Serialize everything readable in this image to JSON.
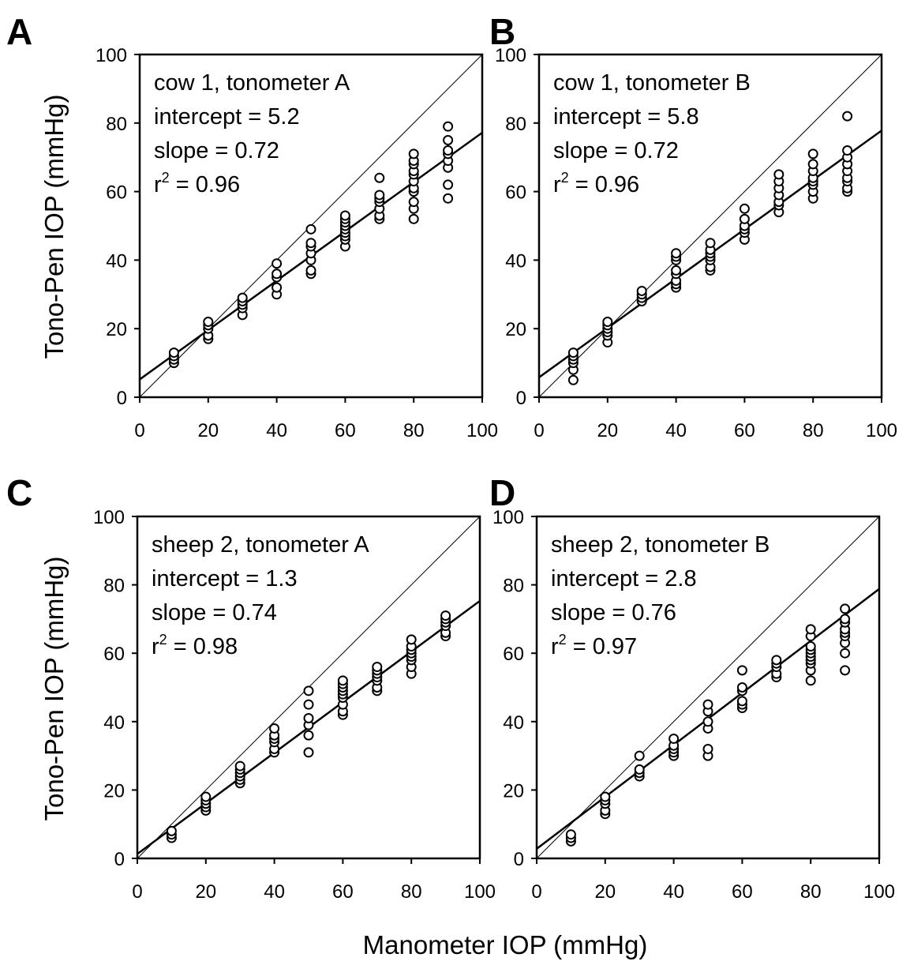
{
  "figure": {
    "ylabel": "Tono-Pen IOP (mmHg)",
    "xlabel": "Manometer IOP (mmHg)"
  },
  "chart_data": [
    {
      "panel": "A",
      "type": "scatter",
      "annotation": {
        "title": "cow 1, tonometer A",
        "intercept": "intercept = 5.2",
        "slope": "slope = 0.72",
        "r2_prefix": "r",
        "r2_sup": "2",
        "r2_value": " = 0.96"
      },
      "fit": {
        "intercept": 5.2,
        "slope": 0.72
      },
      "identity_line": true,
      "xlim": [
        0,
        100
      ],
      "ylim": [
        0,
        100
      ],
      "xticks": [
        0,
        20,
        40,
        60,
        80,
        100
      ],
      "yticks": [
        0,
        20,
        40,
        60,
        80,
        100
      ],
      "points": [
        [
          10,
          10
        ],
        [
          10,
          11
        ],
        [
          10,
          12
        ],
        [
          10,
          13
        ],
        [
          20,
          17
        ],
        [
          20,
          18
        ],
        [
          20,
          20
        ],
        [
          20,
          21
        ],
        [
          20,
          22
        ],
        [
          30,
          24
        ],
        [
          30,
          26
        ],
        [
          30,
          27
        ],
        [
          30,
          28
        ],
        [
          30,
          29
        ],
        [
          40,
          30
        ],
        [
          40,
          32
        ],
        [
          40,
          35
        ],
        [
          40,
          36
        ],
        [
          40,
          39
        ],
        [
          50,
          36
        ],
        [
          50,
          37
        ],
        [
          50,
          40
        ],
        [
          50,
          42
        ],
        [
          50,
          44
        ],
        [
          50,
          45
        ],
        [
          50,
          49
        ],
        [
          60,
          44
        ],
        [
          60,
          46
        ],
        [
          60,
          47
        ],
        [
          60,
          48
        ],
        [
          60,
          49
        ],
        [
          60,
          50
        ],
        [
          60,
          51
        ],
        [
          60,
          52
        ],
        [
          60,
          53
        ],
        [
          70,
          52
        ],
        [
          70,
          53
        ],
        [
          70,
          55
        ],
        [
          70,
          57
        ],
        [
          70,
          58
        ],
        [
          70,
          59
        ],
        [
          70,
          64
        ],
        [
          80,
          52
        ],
        [
          80,
          55
        ],
        [
          80,
          57
        ],
        [
          80,
          60
        ],
        [
          80,
          61
        ],
        [
          80,
          63
        ],
        [
          80,
          65
        ],
        [
          80,
          66
        ],
        [
          80,
          68
        ],
        [
          80,
          69
        ],
        [
          80,
          71
        ],
        [
          90,
          58
        ],
        [
          90,
          62
        ],
        [
          90,
          67
        ],
        [
          90,
          69
        ],
        [
          90,
          71
        ],
        [
          90,
          72
        ],
        [
          90,
          75
        ],
        [
          90,
          79
        ]
      ]
    },
    {
      "panel": "B",
      "type": "scatter",
      "annotation": {
        "title": "cow 1, tonometer B",
        "intercept": "intercept = 5.8",
        "slope": "slope = 0.72",
        "r2_prefix": "r",
        "r2_sup": "2",
        "r2_value": " = 0.96"
      },
      "fit": {
        "intercept": 5.8,
        "slope": 0.72
      },
      "identity_line": true,
      "xlim": [
        0,
        100
      ],
      "ylim": [
        0,
        100
      ],
      "xticks": [
        0,
        20,
        40,
        60,
        80,
        100
      ],
      "yticks": [
        0,
        20,
        40,
        60,
        80,
        100
      ],
      "points": [
        [
          10,
          5
        ],
        [
          10,
          8
        ],
        [
          10,
          10
        ],
        [
          10,
          11
        ],
        [
          10,
          12
        ],
        [
          10,
          13
        ],
        [
          20,
          16
        ],
        [
          20,
          18
        ],
        [
          20,
          19
        ],
        [
          20,
          20
        ],
        [
          20,
          21
        ],
        [
          20,
          22
        ],
        [
          30,
          28
        ],
        [
          30,
          29
        ],
        [
          30,
          30
        ],
        [
          30,
          31
        ],
        [
          40,
          32
        ],
        [
          40,
          33
        ],
        [
          40,
          34
        ],
        [
          40,
          36
        ],
        [
          40,
          37
        ],
        [
          40,
          40
        ],
        [
          40,
          41
        ],
        [
          40,
          42
        ],
        [
          50,
          37
        ],
        [
          50,
          38
        ],
        [
          50,
          40
        ],
        [
          50,
          41
        ],
        [
          50,
          42
        ],
        [
          50,
          43
        ],
        [
          50,
          45
        ],
        [
          60,
          46
        ],
        [
          60,
          48
        ],
        [
          60,
          49
        ],
        [
          60,
          50
        ],
        [
          60,
          52
        ],
        [
          60,
          55
        ],
        [
          70,
          54
        ],
        [
          70,
          56
        ],
        [
          70,
          57
        ],
        [
          70,
          59
        ],
        [
          70,
          61
        ],
        [
          70,
          63
        ],
        [
          70,
          65
        ],
        [
          80,
          58
        ],
        [
          80,
          60
        ],
        [
          80,
          62
        ],
        [
          80,
          63
        ],
        [
          80,
          64
        ],
        [
          80,
          66
        ],
        [
          80,
          68
        ],
        [
          80,
          71
        ],
        [
          90,
          60
        ],
        [
          90,
          61
        ],
        [
          90,
          63
        ],
        [
          90,
          64
        ],
        [
          90,
          66
        ],
        [
          90,
          68
        ],
        [
          90,
          70
        ],
        [
          90,
          72
        ],
        [
          90,
          82
        ]
      ]
    },
    {
      "panel": "C",
      "type": "scatter",
      "annotation": {
        "title": "sheep 2, tonometer A",
        "intercept": "intercept = 1.3",
        "slope": "slope = 0.74",
        "r2_prefix": "r",
        "r2_sup": "2",
        "r2_value": " = 0.98"
      },
      "fit": {
        "intercept": 1.3,
        "slope": 0.74
      },
      "identity_line": true,
      "xlim": [
        0,
        100
      ],
      "ylim": [
        0,
        100
      ],
      "xticks": [
        0,
        20,
        40,
        60,
        80,
        100
      ],
      "yticks": [
        0,
        20,
        40,
        60,
        80,
        100
      ],
      "points": [
        [
          10,
          6
        ],
        [
          10,
          7
        ],
        [
          10,
          8
        ],
        [
          20,
          14
        ],
        [
          20,
          15
        ],
        [
          20,
          16
        ],
        [
          20,
          17
        ],
        [
          20,
          18
        ],
        [
          30,
          22
        ],
        [
          30,
          23
        ],
        [
          30,
          24
        ],
        [
          30,
          25
        ],
        [
          30,
          26
        ],
        [
          30,
          27
        ],
        [
          40,
          31
        ],
        [
          40,
          32
        ],
        [
          40,
          34
        ],
        [
          40,
          35
        ],
        [
          40,
          36
        ],
        [
          40,
          38
        ],
        [
          50,
          31
        ],
        [
          50,
          36
        ],
        [
          50,
          39
        ],
        [
          50,
          41
        ],
        [
          50,
          45
        ],
        [
          50,
          49
        ],
        [
          60,
          42
        ],
        [
          60,
          43
        ],
        [
          60,
          45
        ],
        [
          60,
          47
        ],
        [
          60,
          48
        ],
        [
          60,
          49
        ],
        [
          60,
          50
        ],
        [
          60,
          51
        ],
        [
          60,
          52
        ],
        [
          70,
          49
        ],
        [
          70,
          50
        ],
        [
          70,
          52
        ],
        [
          70,
          53
        ],
        [
          70,
          54
        ],
        [
          70,
          55
        ],
        [
          70,
          56
        ],
        [
          80,
          54
        ],
        [
          80,
          56
        ],
        [
          80,
          58
        ],
        [
          80,
          59
        ],
        [
          80,
          60
        ],
        [
          80,
          61
        ],
        [
          80,
          62
        ],
        [
          80,
          64
        ],
        [
          90,
          65
        ],
        [
          90,
          66
        ],
        [
          90,
          68
        ],
        [
          90,
          69
        ],
        [
          90,
          70
        ],
        [
          90,
          71
        ]
      ]
    },
    {
      "panel": "D",
      "type": "scatter",
      "annotation": {
        "title": "sheep 2, tonometer B",
        "intercept": "intercept = 2.8",
        "slope": "slope = 0.76",
        "r2_prefix": "r",
        "r2_sup": "2",
        "r2_value": " = 0.97"
      },
      "fit": {
        "intercept": 2.8,
        "slope": 0.76
      },
      "identity_line": true,
      "xlim": [
        0,
        100
      ],
      "ylim": [
        0,
        100
      ],
      "xticks": [
        0,
        20,
        40,
        60,
        80,
        100
      ],
      "yticks": [
        0,
        20,
        40,
        60,
        80,
        100
      ],
      "points": [
        [
          10,
          5
        ],
        [
          10,
          6
        ],
        [
          10,
          7
        ],
        [
          20,
          13
        ],
        [
          20,
          14
        ],
        [
          20,
          16
        ],
        [
          20,
          17
        ],
        [
          20,
          18
        ],
        [
          30,
          24
        ],
        [
          30,
          25
        ],
        [
          30,
          26
        ],
        [
          30,
          30
        ],
        [
          40,
          30
        ],
        [
          40,
          31
        ],
        [
          40,
          32
        ],
        [
          40,
          33
        ],
        [
          40,
          35
        ],
        [
          50,
          30
        ],
        [
          50,
          32
        ],
        [
          50,
          38
        ],
        [
          50,
          40
        ],
        [
          50,
          43
        ],
        [
          50,
          45
        ],
        [
          60,
          44
        ],
        [
          60,
          45
        ],
        [
          60,
          46
        ],
        [
          60,
          49
        ],
        [
          60,
          50
        ],
        [
          60,
          55
        ],
        [
          70,
          53
        ],
        [
          70,
          54
        ],
        [
          70,
          56
        ],
        [
          70,
          57
        ],
        [
          70,
          58
        ],
        [
          80,
          52
        ],
        [
          80,
          55
        ],
        [
          80,
          57
        ],
        [
          80,
          58
        ],
        [
          80,
          59
        ],
        [
          80,
          60
        ],
        [
          80,
          61
        ],
        [
          80,
          62
        ],
        [
          80,
          65
        ],
        [
          80,
          67
        ],
        [
          90,
          55
        ],
        [
          90,
          60
        ],
        [
          90,
          63
        ],
        [
          90,
          65
        ],
        [
          90,
          66
        ],
        [
          90,
          67
        ],
        [
          90,
          69
        ],
        [
          90,
          70
        ],
        [
          90,
          73
        ]
      ]
    }
  ]
}
